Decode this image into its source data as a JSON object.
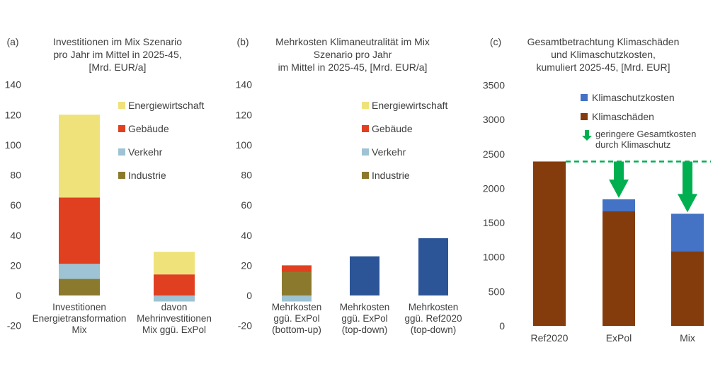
{
  "chart_data": [
    {
      "type": "bar",
      "stacked": true,
      "panel_label": "(a)",
      "title": [
        "Investitionen im Mix Szenario",
        "pro Jahr im Mittel in 2025-45,",
        "[Mrd. EUR/a]"
      ],
      "categories": [
        [
          "Investitionen",
          "Energietransformation",
          "Mix"
        ],
        [
          "davon",
          "Mehrinvestitionen",
          "Mix ggü. ExPol"
        ]
      ],
      "ylim": [
        -20,
        140
      ],
      "yticks": [
        -20,
        0,
        20,
        40,
        60,
        80,
        100,
        120,
        140
      ],
      "grid": false,
      "legend_placement": "top-right",
      "legend": [
        "Energiewirtschaft",
        "Gebäude",
        "Verkehr",
        "Industrie"
      ],
      "series": [
        {
          "name": "Industrie",
          "color": "#8B7A2E",
          "values": [
            11,
            0
          ]
        },
        {
          "name": "Verkehr",
          "color": "#9DC3D4",
          "values": [
            10,
            -4
          ]
        },
        {
          "name": "Gebäude",
          "color": "#E04020",
          "values": [
            44,
            14
          ]
        },
        {
          "name": "Energiewirtschaft",
          "color": "#EFE27A",
          "values": [
            55,
            15
          ]
        }
      ]
    },
    {
      "type": "bar",
      "stacked": true,
      "panel_label": "(b)",
      "title": [
        "Mehrkosten Klimaneutralität im Mix",
        "Szenario pro Jahr",
        "im Mittel in 2025-45, [Mrd. EUR/a]"
      ],
      "categories": [
        [
          "Mehrkosten",
          "ggü. ExPol",
          "(bottom-up)"
        ],
        [
          "Mehrkosten",
          "ggü. ExPol",
          "(top-down)"
        ],
        [
          "Mehrkosten",
          "ggü. Ref2020",
          "(top-down)"
        ]
      ],
      "ylim": [
        -20,
        140
      ],
      "yticks": [
        -20,
        0,
        20,
        40,
        60,
        80,
        100,
        120,
        140
      ],
      "grid": false,
      "legend_placement": "top-right",
      "legend": [
        "Energiewirtschaft",
        "Gebäude",
        "Verkehr",
        "Industrie"
      ],
      "series": [
        {
          "name": "Industrie",
          "color": "#8B7A2E",
          "values": [
            15.5,
            0,
            0
          ]
        },
        {
          "name": "Verkehr",
          "color": "#9DC3D4",
          "values": [
            -4,
            0,
            0
          ]
        },
        {
          "name": "Gebäude",
          "color": "#E04020",
          "values": [
            4.5,
            0,
            0
          ]
        },
        {
          "name": "Energiewirtschaft",
          "color": "#EFE27A",
          "values": [
            0,
            0,
            0
          ]
        },
        {
          "color": "#2B5597",
          "values": [
            0,
            26,
            38
          ]
        }
      ]
    },
    {
      "type": "bar",
      "stacked": true,
      "panel_label": "(c)",
      "title": [
        "Gesamtbetrachtung Klimaschäden",
        "und Klimaschutzkosten,",
        "kumuliert 2025-45, [Mrd. EUR]"
      ],
      "categories": [
        "Ref2020",
        "ExPol",
        "Mix"
      ],
      "ylim": [
        0,
        3500
      ],
      "yticks": [
        0,
        500,
        1000,
        1500,
        2000,
        2500,
        3000,
        3500
      ],
      "grid": false,
      "legend_placement": "top-right",
      "legend": [
        "Klimaschutzkosten",
        "Klimaschäden"
      ],
      "annotation": [
        "geringere Gesamtkosten",
        "durch Klimaschutz"
      ],
      "reference_line": 2390,
      "arrow_color": "#00B050",
      "series": [
        {
          "name": "Klimaschäden",
          "color": "#843C0C",
          "values": [
            2390,
            1665,
            1085
          ]
        },
        {
          "name": "Klimaschutzkosten",
          "color": "#4472C4",
          "values": [
            0,
            175,
            545
          ]
        }
      ]
    }
  ]
}
